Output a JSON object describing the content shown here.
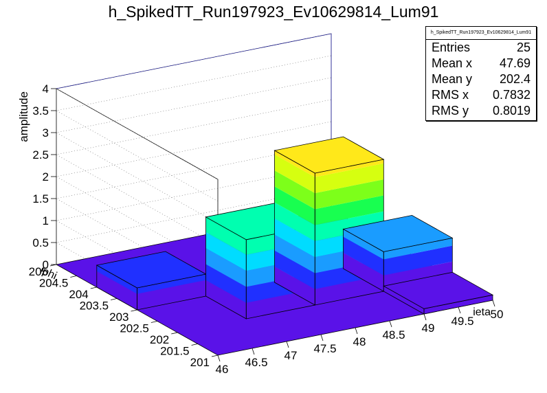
{
  "title": "h_SpikedTT_Run197923_Ev10629814_Lum91",
  "stats_box": {
    "name": "h_SpikedTT_Run197923_Ev10629814_Lum91",
    "rows": [
      {
        "label": "Entries",
        "value": "25"
      },
      {
        "label": "Mean x",
        "value": "47.69"
      },
      {
        "label": "Mean y",
        "value": "202.4"
      },
      {
        "label": "RMS x",
        "value": "0.7832"
      },
      {
        "label": "RMS y",
        "value": "0.8019"
      }
    ]
  },
  "chart_data": {
    "type": "lego3d",
    "title": "h_SpikedTT_Run197923_Ev10629814_Lum91",
    "xlabel": "ieta",
    "ylabel": "iphi",
    "zlabel": "amplitude",
    "xlim": [
      46,
      50
    ],
    "ylim": [
      201,
      205
    ],
    "zlim": [
      0,
      4
    ],
    "x_ticks": [
      "46",
      "46.5",
      "47",
      "47.5",
      "48",
      "48.5",
      "49",
      "49.5",
      "50"
    ],
    "y_ticks": [
      "201",
      "201.5",
      "202",
      "202.5",
      "203",
      "203.5",
      "204",
      "204.5",
      "205"
    ],
    "z_ticks": [
      "0",
      "0.5",
      "1",
      "1.5",
      "2",
      "2.5",
      "3",
      "3.5",
      "4"
    ],
    "bins": [
      {
        "x": [
          46,
          47
        ],
        "y": [
          203,
          204
        ],
        "value": 0.5
      },
      {
        "x": [
          47,
          48
        ],
        "y": [
          202,
          203
        ],
        "value": 1.8
      },
      {
        "x": [
          48,
          49
        ],
        "y": [
          202,
          203
        ],
        "value": 3.0
      },
      {
        "x": [
          49,
          50
        ],
        "y": [
          202,
          203
        ],
        "value": 0.9
      },
      {
        "x": [
          49,
          50
        ],
        "y": [
          201,
          202
        ],
        "value": 0.12
      }
    ],
    "grid": true,
    "stats_box_position": "top-right",
    "palette": [
      "#5a12e8",
      "#2030ff",
      "#1a9cff",
      "#00dcff",
      "#00ffb0",
      "#18ff50",
      "#7dff1a",
      "#d6ff10",
      "#ffe81a",
      "#ff8a10",
      "#ff2020"
    ]
  }
}
